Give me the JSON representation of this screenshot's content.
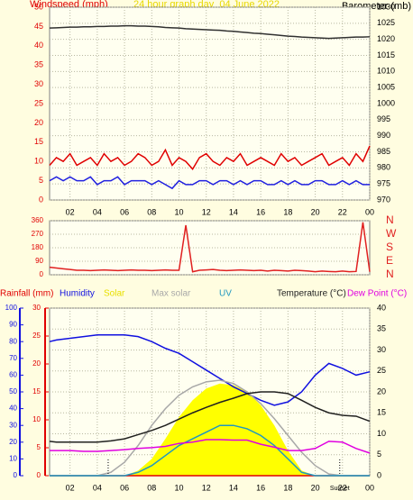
{
  "chart_data": [
    {
      "type": "line",
      "title": "24 hour graph day  04 June 2022",
      "ylabel": "Windspeed (mph)",
      "y2label": "Barometer (mb)",
      "xlim": [
        0.5,
        24
      ],
      "xticks": [
        {
          "value": 2,
          "label": "02"
        },
        {
          "value": 4,
          "label": "04"
        },
        {
          "value": 6,
          "label": "06"
        },
        {
          "value": 8,
          "label": "08"
        },
        10,
        12,
        14,
        16,
        18,
        20,
        22,
        {
          "value": 24,
          "label": "00"
        }
      ],
      "ylim": [
        0,
        50
      ],
      "yticks": [
        0,
        5,
        10,
        15,
        20,
        25,
        30,
        35,
        40,
        45,
        50
      ],
      "y2lim": [
        970,
        1030
      ],
      "y2ticks": [
        970,
        975,
        980,
        985,
        990,
        995,
        1000,
        1005,
        1010,
        1015,
        1020,
        1025,
        1030
      ],
      "grid": true,
      "x": [
        0.5,
        1,
        1.5,
        2,
        2.5,
        3,
        3.5,
        4,
        4.5,
        5,
        5.5,
        6,
        6.5,
        7,
        7.5,
        8,
        8.5,
        9,
        9.5,
        10,
        10.5,
        11,
        11.5,
        12,
        12.5,
        13,
        13.5,
        14,
        14.5,
        15,
        15.5,
        16,
        16.5,
        17,
        17.5,
        18,
        18.5,
        19,
        19.5,
        20,
        20.5,
        21,
        21.5,
        22,
        22.5,
        23,
        23.5,
        24
      ],
      "series": [
        {
          "color": "#e00000",
          "values": [
            9,
            11,
            10,
            12,
            9,
            10,
            11,
            9,
            12,
            10,
            11,
            9,
            10,
            12,
            11,
            9,
            10,
            13,
            9,
            11,
            10,
            8,
            11,
            12,
            10,
            9,
            11,
            10,
            12,
            9,
            10,
            11,
            10,
            9,
            12,
            10,
            11,
            9,
            10,
            11,
            12,
            9,
            10,
            11,
            9,
            12,
            10,
            14
          ]
        },
        {
          "color": "#2020e0",
          "values": [
            5,
            6,
            5,
            6,
            5,
            5,
            6,
            4,
            5,
            5,
            6,
            4,
            5,
            5,
            5,
            4,
            5,
            4,
            3,
            5,
            4,
            4,
            5,
            5,
            4,
            5,
            5,
            4,
            5,
            4,
            5,
            5,
            4,
            4,
            5,
            4,
            5,
            4,
            4,
            5,
            5,
            4,
            4,
            5,
            4,
            5,
            4,
            4
          ]
        },
        {
          "color": "#303030",
          "axis": "y2",
          "values": [
            1023.5,
            1023.6,
            1023.7,
            1023.8,
            1023.8,
            1023.9,
            1023.9,
            1024.0,
            1024.0,
            1024.1,
            1024.1,
            1024.2,
            1024.2,
            1024.1,
            1024.1,
            1024.0,
            1023.9,
            1023.7,
            1023.6,
            1023.5,
            1023.3,
            1023.2,
            1023.1,
            1023.0,
            1022.9,
            1022.8,
            1022.6,
            1022.5,
            1022.3,
            1022.1,
            1021.9,
            1021.8,
            1021.6,
            1021.4,
            1021.2,
            1021.0,
            1020.9,
            1020.7,
            1020.6,
            1020.5,
            1020.4,
            1020.3,
            1020.4,
            1020.5,
            1020.6,
            1020.7,
            1020.7,
            1020.8
          ]
        }
      ]
    },
    {
      "type": "line",
      "xlim": [
        0.5,
        24
      ],
      "ylim": [
        0,
        360
      ],
      "yticks": [
        0,
        90,
        180,
        270,
        360
      ],
      "y2lim": [
        0,
        360
      ],
      "y2ticks": [
        {
          "value": 0,
          "label": "N"
        },
        {
          "value": 90,
          "label": "E"
        },
        {
          "value": 180,
          "label": "S"
        },
        {
          "value": 270,
          "label": "W"
        },
        {
          "value": 360,
          "label": "N"
        }
      ],
      "grid": true,
      "x": [
        0.5,
        1,
        1.5,
        2,
        2.5,
        3,
        3.5,
        4,
        4.5,
        5,
        5.5,
        6,
        6.5,
        7,
        7.5,
        8,
        8.5,
        9,
        9.5,
        10,
        10.5,
        11,
        11.5,
        12,
        12.5,
        13,
        13.5,
        14,
        14.5,
        15,
        15.5,
        16,
        16.5,
        17,
        17.5,
        18,
        18.5,
        19,
        19.5,
        20,
        20.5,
        21,
        21.5,
        22,
        22.5,
        23,
        23.5,
        24
      ],
      "series": [
        {
          "color": "#e02020",
          "values": [
            50,
            45,
            40,
            35,
            30,
            30,
            28,
            30,
            32,
            30,
            28,
            30,
            32,
            30,
            30,
            28,
            30,
            32,
            30,
            30,
            330,
            20,
            30,
            32,
            35,
            30,
            28,
            30,
            32,
            30,
            28,
            30,
            25,
            30,
            28,
            25,
            30,
            28,
            25,
            20,
            25,
            22,
            20,
            25,
            20,
            22,
            350,
            20
          ]
        }
      ]
    },
    {
      "type": "line",
      "xlim": [
        0.5,
        24
      ],
      "xticks": [
        {
          "value": 2,
          "label": "02"
        },
        {
          "value": 4,
          "label": "04"
        },
        {
          "value": 6,
          "label": "06"
        },
        {
          "value": 8,
          "label": "08"
        },
        10,
        12,
        14,
        16,
        18,
        20,
        22,
        {
          "value": 24,
          "label": "00"
        }
      ],
      "ylim": [
        0,
        100
      ],
      "yticks": [
        0,
        10,
        20,
        30,
        40,
        50,
        60,
        70,
        80,
        90,
        100
      ],
      "y3lim": [
        0,
        30
      ],
      "y3ticks": [
        0,
        5,
        10,
        15,
        20,
        25,
        30
      ],
      "y2lim": [
        0,
        40
      ],
      "y2ticks": [
        0,
        5,
        10,
        15,
        20,
        25,
        30,
        35,
        40
      ],
      "grid": true,
      "sunrise": {
        "x": 4.8
      },
      "sunset": {
        "x": 21.8,
        "label": "Sunset"
      },
      "x": [
        0.5,
        1,
        2,
        3,
        4,
        5,
        6,
        7,
        8,
        9,
        10,
        11,
        12,
        13,
        14,
        15,
        16,
        17,
        18,
        19,
        20,
        21,
        22,
        23,
        24
      ],
      "series": [
        {
          "name": "Rainfall (mm)",
          "color": "#e00000",
          "axis": "y3",
          "values": [
            0,
            0,
            0,
            0,
            0,
            0,
            0,
            0,
            0,
            0,
            0,
            0,
            0,
            0,
            0,
            0,
            0,
            0,
            0,
            0,
            0,
            0,
            0,
            0,
            0
          ]
        },
        {
          "name": "Humidity",
          "color": "#1010e0",
          "values": [
            80,
            81,
            82,
            83,
            84,
            84,
            84,
            83,
            80,
            76,
            73,
            68,
            63,
            58,
            53,
            49,
            45,
            42,
            44,
            50,
            60,
            67,
            64,
            60,
            62
          ]
        },
        {
          "name": "Solar",
          "color": "#ffff00",
          "fill": true,
          "values": [
            0,
            0,
            0,
            0,
            0,
            0,
            0,
            3,
            10,
            22,
            35,
            45,
            52,
            55,
            54,
            50,
            42,
            30,
            15,
            3,
            0,
            0,
            0,
            0,
            0
          ]
        },
        {
          "name": "Max solar",
          "color": "#a8a8a8",
          "values": [
            0,
            0,
            0,
            0,
            0,
            2,
            8,
            18,
            30,
            40,
            48,
            53,
            56,
            57,
            55,
            50,
            43,
            34,
            24,
            14,
            6,
            1,
            0,
            0,
            0
          ]
        },
        {
          "name": "UV",
          "color": "#2098c0",
          "values": [
            0,
            0,
            0,
            0,
            0,
            0,
            0,
            2,
            6,
            12,
            18,
            22,
            26,
            30,
            30,
            28,
            24,
            18,
            10,
            2,
            0,
            0,
            0,
            0,
            0
          ]
        },
        {
          "name": "Temperature (°C)",
          "color": "#202020",
          "axis": "y2",
          "values": [
            8.2,
            8,
            8,
            8,
            8,
            8.3,
            8.8,
            9.8,
            10.8,
            12,
            13.5,
            15,
            16.3,
            17.5,
            18.5,
            19.6,
            20,
            20,
            19.6,
            18,
            16.3,
            15,
            14.4,
            14.2,
            13
          ]
        },
        {
          "name": "Dew Point (°C)",
          "color": "#e000e0",
          "axis": "y2",
          "values": [
            6,
            6,
            6,
            5.8,
            5.8,
            6,
            6.2,
            6.5,
            6.7,
            7,
            7.7,
            8,
            8.6,
            8.6,
            8.5,
            8.5,
            7.5,
            6.8,
            6,
            6,
            6.5,
            8.2,
            8,
            6.5,
            5.4
          ]
        }
      ]
    }
  ]
}
